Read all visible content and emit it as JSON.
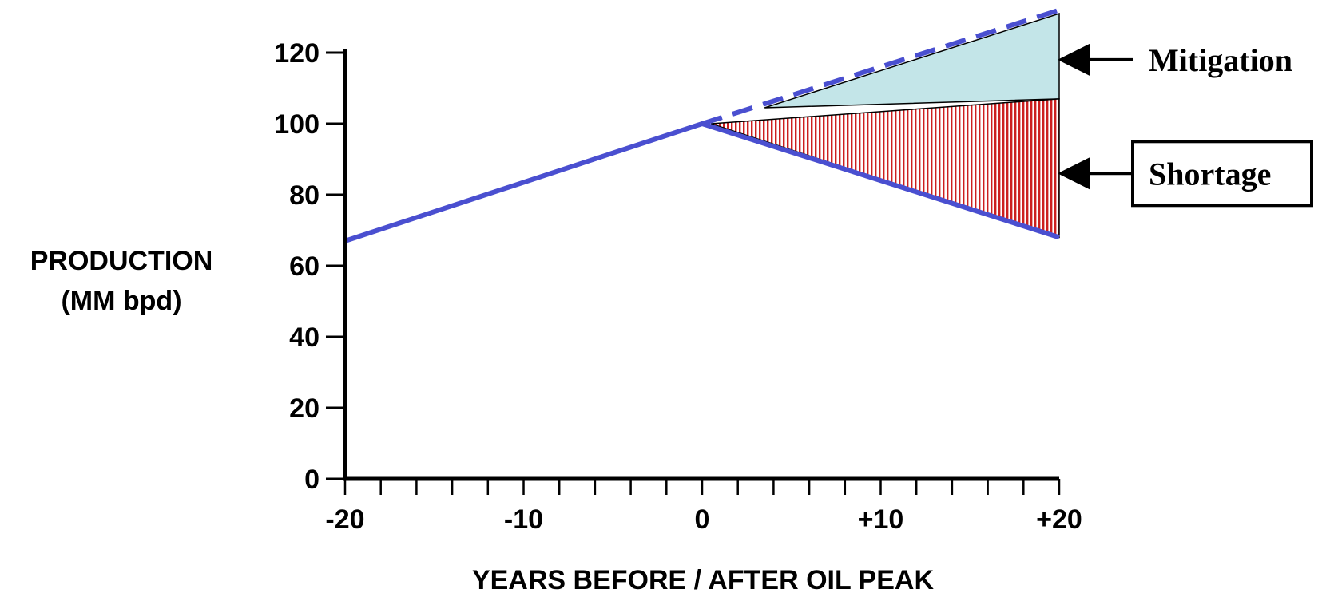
{
  "chart_data": {
    "type": "line",
    "title": "",
    "xlabel": "YEARS BEFORE / AFTER  OIL PEAK",
    "ylabel_lines": [
      "PRODUCTION",
      "(MM bpd)"
    ],
    "xlim": [
      -20,
      20
    ],
    "ylim": [
      0,
      130
    ],
    "x_ticks": [
      {
        "value": -20,
        "label": "-20"
      },
      {
        "value": -10,
        "label": "-10"
      },
      {
        "value": 0,
        "label": "0"
      },
      {
        "value": 10,
        "label": "+10"
      },
      {
        "value": 20,
        "label": "+20"
      }
    ],
    "x_minor_step": 2,
    "y_ticks": [
      0,
      20,
      40,
      60,
      80,
      100,
      120
    ],
    "grid": false,
    "series": [
      {
        "style": "solid",
        "color": "#4a4fd0",
        "x": [
          -20,
          0,
          20
        ],
        "y": [
          67,
          100,
          68
        ]
      },
      {
        "style": "dashed",
        "color": "#4a4fd0",
        "x": [
          0,
          20
        ],
        "y": [
          100,
          132
        ]
      }
    ],
    "regions": [
      {
        "label": "Mitigation",
        "fill": "#c3e5e8",
        "x": [
          3.5,
          20,
          20
        ],
        "y": [
          104.5,
          131,
          107
        ]
      },
      {
        "label": "Shortage",
        "fill": "hatched-red",
        "x": [
          0.5,
          20,
          20
        ],
        "y": [
          100,
          107,
          68
        ]
      }
    ],
    "annotations": [
      {
        "text": "Mitigation",
        "boxed": false,
        "target_x": 20,
        "target_y": 118
      },
      {
        "text": "Shortage",
        "boxed": true,
        "target_x": 20,
        "target_y": 86
      }
    ]
  }
}
